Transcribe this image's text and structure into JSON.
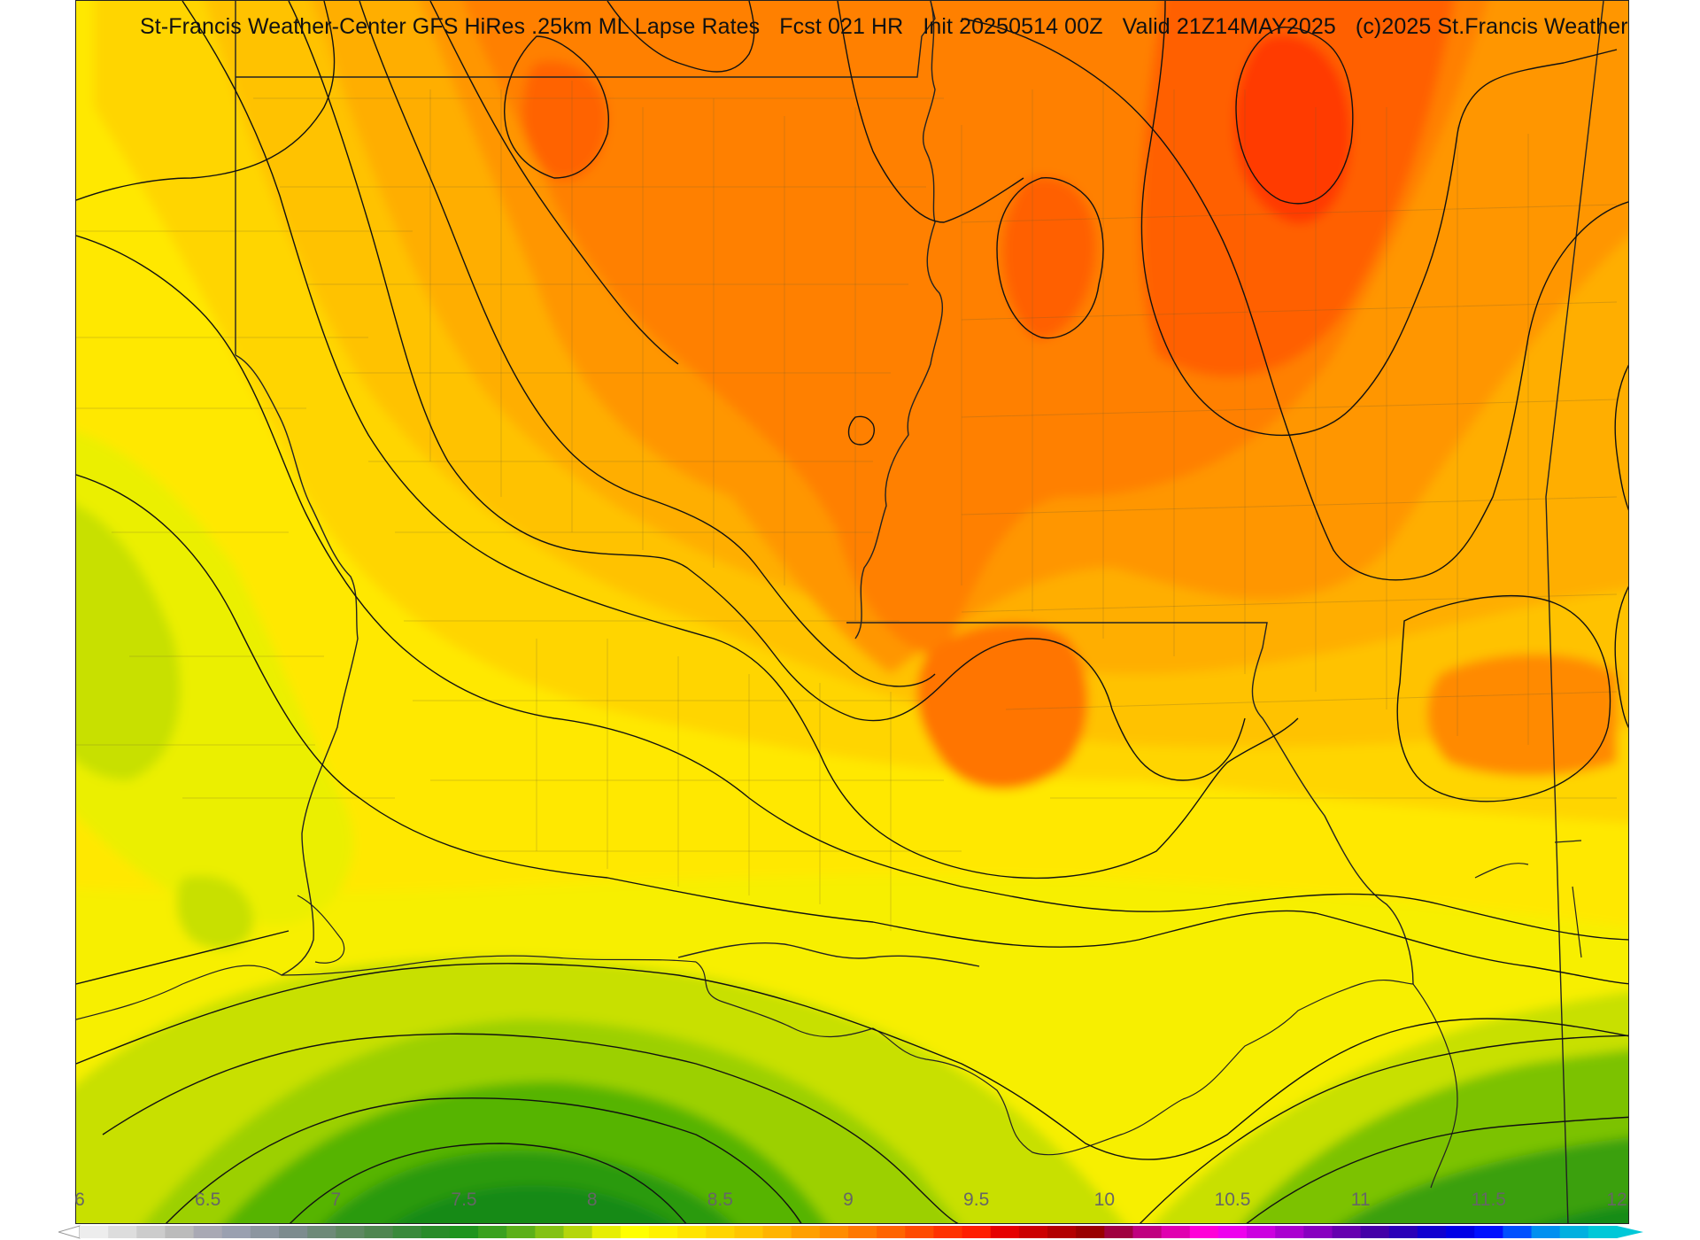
{
  "header": {
    "title": "St-Francis Weather-Center GFS HiRes .25km ML Lapse Rates",
    "forecast": "Fcst 021 HR",
    "init": "Init 20250514 00Z",
    "valid": "Valid 21Z14MAY2025",
    "copyright": "(c)2025 St.Francis Weather"
  },
  "legend": {
    "ticks": [
      "6",
      "6.5",
      "7",
      "7.5",
      "8",
      "8.5",
      "9",
      "9.5",
      "10",
      "10.5",
      "11",
      "11.5",
      "12"
    ],
    "min": 6,
    "max": 12,
    "colors": [
      "#ededed",
      "#dddddd",
      "#cccccc",
      "#bbbbbb",
      "#a9a9b4",
      "#9aa0b0",
      "#8c96a0",
      "#7d8c8e",
      "#6e8a78",
      "#5e8862",
      "#4f8650",
      "#3a8a3c",
      "#2a8c2a",
      "#1f941f",
      "#3aa11f",
      "#5cb01a",
      "#84c214",
      "#b4d60c",
      "#e6ee04",
      "#ffff00",
      "#fff200",
      "#ffe400",
      "#ffd500",
      "#ffc600",
      "#ffb400",
      "#ffa000",
      "#ff8c00",
      "#ff7800",
      "#ff6400",
      "#ff4b00",
      "#ff3200",
      "#ff1e00",
      "#e60000",
      "#cc0000",
      "#b30000",
      "#9a0000",
      "#a00040",
      "#c00080",
      "#e000b0",
      "#ff00d8",
      "#ee00ee",
      "#cc00e0",
      "#aa00d0",
      "#8800c0",
      "#6600b0",
      "#4400a8",
      "#2a00b8",
      "#1000d0",
      "#0000e6",
      "#0010ff",
      "#0050ff",
      "#0090f0",
      "#00b0e0",
      "#00c8d8"
    ]
  }
}
